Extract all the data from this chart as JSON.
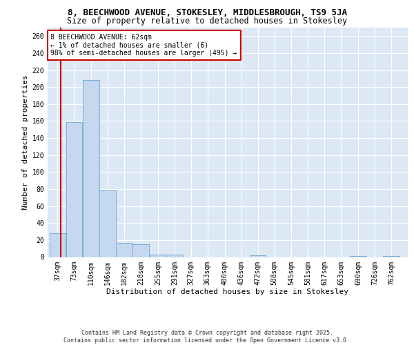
{
  "title1": "8, BEECHWOOD AVENUE, STOKESLEY, MIDDLESBROUGH, TS9 5JA",
  "title2": "Size of property relative to detached houses in Stokesley",
  "xlabel": "Distribution of detached houses by size in Stokesley",
  "ylabel": "Number of detached properties",
  "bar_color": "#c5d8f0",
  "bar_edge_color": "#7aadd4",
  "property_line_color": "#cc0000",
  "property_value": 62,
  "annotation_text": "8 BEECHWOOD AVENUE: 62sqm\n← 1% of detached houses are smaller (6)\n98% of semi-detached houses are larger (495) →",
  "annotation_box_color": "#ffffff",
  "annotation_box_edge": "#cc0000",
  "categories": [
    "37sqm",
    "73sqm",
    "110sqm",
    "146sqm",
    "182sqm",
    "218sqm",
    "255sqm",
    "291sqm",
    "327sqm",
    "363sqm",
    "400sqm",
    "436sqm",
    "472sqm",
    "508sqm",
    "545sqm",
    "581sqm",
    "617sqm",
    "653sqm",
    "690sqm",
    "726sqm",
    "762sqm"
  ],
  "bin_edges": [
    37,
    73,
    110,
    146,
    182,
    218,
    255,
    291,
    327,
    363,
    400,
    436,
    472,
    508,
    545,
    581,
    617,
    653,
    690,
    726,
    762
  ],
  "bin_width": 36,
  "values": [
    28,
    159,
    208,
    78,
    17,
    15,
    3,
    3,
    0,
    0,
    0,
    0,
    2,
    0,
    0,
    0,
    0,
    0,
    1,
    0,
    1
  ],
  "ylim": [
    0,
    270
  ],
  "yticks": [
    0,
    20,
    40,
    60,
    80,
    100,
    120,
    140,
    160,
    180,
    200,
    220,
    240,
    260
  ],
  "background_color": "#dde8f5",
  "grid_color": "#ffffff",
  "fig_background": "#ffffff",
  "footer_text": "Contains HM Land Registry data © Crown copyright and database right 2025.\nContains public sector information licensed under the Open Government Licence v3.0.",
  "title1_fontsize": 9,
  "title2_fontsize": 8.5,
  "ylabel_fontsize": 8,
  "xlabel_fontsize": 8,
  "tick_fontsize": 7,
  "footer_fontsize": 6,
  "annot_fontsize": 7
}
